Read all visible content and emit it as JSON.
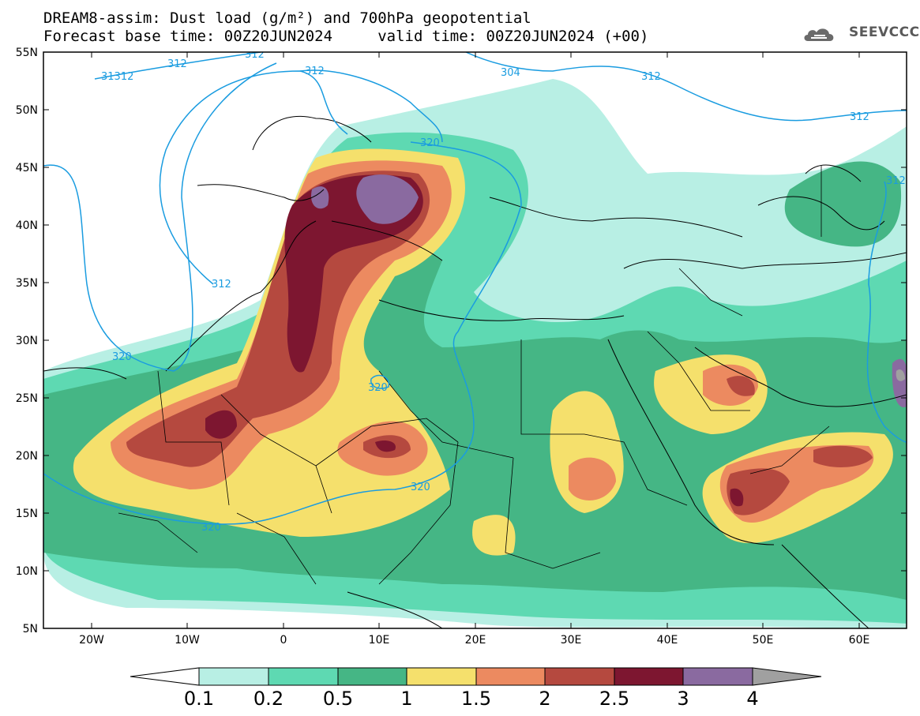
{
  "title": {
    "line1": "DREAM8-assim: Dust load (g/m²) and 700hPa geopotential",
    "line2": "Forecast base time: 00Z20JUN2024     valid time: 00Z20JUN2024 (+00)"
  },
  "logo": {
    "text": "SEEVCCC",
    "icon": "cloud-icon"
  },
  "axes": {
    "lat_labels": [
      "55N",
      "50N",
      "45N",
      "40N",
      "35N",
      "30N",
      "25N",
      "20N",
      "15N",
      "10N",
      "5N"
    ],
    "lon_labels": [
      "20W",
      "10W",
      "0",
      "10E",
      "20E",
      "30E",
      "40E",
      "50E",
      "60E"
    ]
  },
  "contour_labels": [
    "31312",
    "312",
    "312",
    "312",
    "304",
    "312",
    "312",
    "312",
    "320",
    "320",
    "320",
    "320",
    "320"
  ],
  "colorbar": {
    "labels": [
      "0.1",
      "0.2",
      "0.5",
      "1",
      "1.5",
      "2",
      "2.5",
      "3",
      "4"
    ],
    "colors": [
      "#b8efe4",
      "#5ed9b2",
      "#45b685",
      "#f5e06c",
      "#ec8a60",
      "#b5493f",
      "#7d1630",
      "#8a6aa0",
      "#a0a0a0"
    ]
  },
  "colors": {
    "geopotential_line": "#1a9ce0",
    "border": "#000000",
    "background": "#ffffff"
  }
}
